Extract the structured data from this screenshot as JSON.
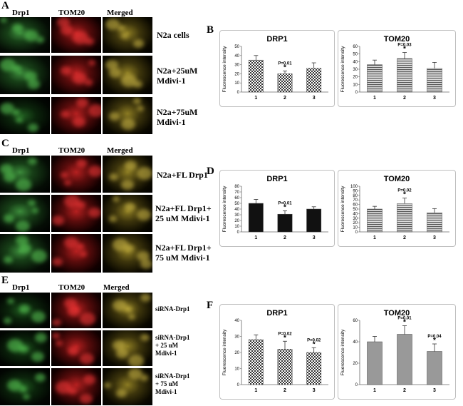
{
  "panels": [
    {
      "letter": "A",
      "columns": [
        "Drp1",
        "TOM20",
        "Merged"
      ],
      "rows": [
        {
          "label": "N2a cells"
        },
        {
          "label": "N2a+25uM\nMdivi-1"
        },
        {
          "label": "N2a+75uM\nMdivi-1"
        }
      ]
    },
    {
      "letter": "C",
      "columns": [
        "Drp1",
        "TOM20",
        "Merged"
      ],
      "rows": [
        {
          "label": "N2a+FL Drp1"
        },
        {
          "label": "N2a+FL Drp1+\n25 uM Mdivi-1"
        },
        {
          "label": "N2a+FL Drp1+\n75 uM Mdivi-1"
        }
      ]
    },
    {
      "letter": "E",
      "columns": [
        "Drp1",
        "TOM20",
        "Merged"
      ],
      "rows": [
        {
          "label": "siRNA-Drp1"
        },
        {
          "label": "siRNA-Drp1\n+ 25 uM\nMdivi-1"
        },
        {
          "label": "siRNA-Drp1\n+ 75 uM\nMdivi-1"
        }
      ]
    }
  ],
  "chart_letters": [
    "B",
    "D",
    "F"
  ],
  "chart_data": [
    {
      "type": "bar",
      "title": "DRP1",
      "ylabel": "Fluorescence intensity",
      "categories": [
        "1",
        "2",
        "3"
      ],
      "values": [
        35,
        20,
        26
      ],
      "errors": [
        5,
        3,
        6
      ],
      "annotations": [
        "",
        "P=0.01",
        ""
      ],
      "stars": [
        false,
        true,
        false
      ],
      "ylim": [
        0,
        50
      ],
      "yticks": [
        0,
        10,
        20,
        30,
        40,
        50
      ],
      "pattern": "checker"
    },
    {
      "type": "bar",
      "title": "TOM20",
      "ylabel": "Fluorescence intensity",
      "categories": [
        "1",
        "2",
        "3"
      ],
      "values": [
        36,
        44,
        31
      ],
      "errors": [
        6,
        8,
        8
      ],
      "annotations": [
        "",
        "P=0.03",
        ""
      ],
      "stars": [
        false,
        true,
        false
      ],
      "ylim": [
        0,
        60
      ],
      "yticks": [
        0,
        10,
        20,
        30,
        40,
        50,
        60
      ],
      "pattern": "hlines"
    },
    {
      "type": "bar",
      "title": "DRP1",
      "ylabel": "Fluorescence intensity",
      "categories": [
        "1",
        "2",
        "3"
      ],
      "values": [
        50,
        31,
        40
      ],
      "errors": [
        7,
        6,
        4
      ],
      "annotations": [
        "",
        "P=0.01",
        ""
      ],
      "stars": [
        false,
        true,
        false
      ],
      "ylim": [
        0,
        80
      ],
      "yticks": [
        0,
        10,
        20,
        30,
        40,
        50,
        60,
        70,
        80
      ],
      "pattern": "solid"
    },
    {
      "type": "bar",
      "title": "TOM20",
      "ylabel": "Fluorescence intensity",
      "categories": [
        "1",
        "2",
        "3"
      ],
      "values": [
        50,
        62,
        42
      ],
      "errors": [
        6,
        12,
        9
      ],
      "annotations": [
        "",
        "P=0.02",
        ""
      ],
      "stars": [
        false,
        true,
        false
      ],
      "ylim": [
        0,
        100
      ],
      "yticks": [
        0,
        10,
        20,
        30,
        40,
        50,
        60,
        70,
        80,
        90,
        100
      ],
      "pattern": "hlines"
    },
    {
      "type": "bar",
      "title": "DRP1",
      "ylabel": "Fluorescence intensity",
      "categories": [
        "1",
        "2",
        "3"
      ],
      "values": [
        28,
        22,
        20
      ],
      "errors": [
        3,
        5,
        3
      ],
      "annotations": [
        "",
        "P=0.02",
        "P=0.02"
      ],
      "stars": [
        false,
        true,
        true
      ],
      "ylim": [
        0,
        40
      ],
      "yticks": [
        0,
        10,
        20,
        30,
        40
      ],
      "pattern": "checker"
    },
    {
      "type": "bar",
      "title": "TOM20",
      "ylabel": "Fluorescence intensity",
      "categories": [
        "1",
        "2",
        "3"
      ],
      "values": [
        40,
        47,
        31
      ],
      "errors": [
        5,
        8,
        7
      ],
      "annotations": [
        "",
        "P=0.01",
        "P=0.04"
      ],
      "stars": [
        false,
        true,
        true
      ],
      "ylim": [
        0,
        60
      ],
      "yticks": [
        0,
        20,
        40,
        60
      ],
      "pattern": "solid"
    }
  ]
}
